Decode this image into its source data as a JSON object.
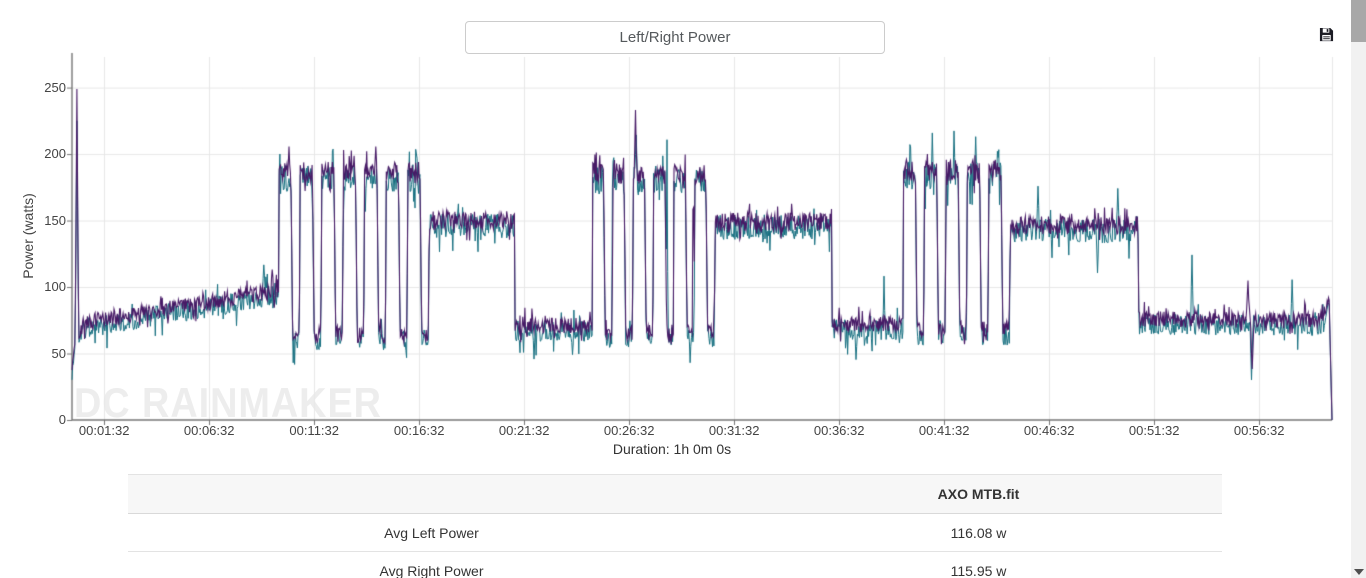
{
  "header": {
    "title": "Left/Right Power"
  },
  "watermark": "DC RAINMAKER",
  "chart_data": {
    "type": "line",
    "title": "Left/Right Power",
    "xlabel": "Duration: 1h 0m 0s",
    "ylabel": "Power (watts)",
    "xlim_seconds": [
      0,
      3600
    ],
    "ylim": [
      0,
      273
    ],
    "y_ticks": [
      0,
      50,
      100,
      150,
      200,
      250
    ],
    "x_ticks": [
      {
        "t": 92,
        "label": "00:01:32"
      },
      {
        "t": 392,
        "label": "00:06:32"
      },
      {
        "t": 692,
        "label": "00:11:32"
      },
      {
        "t": 992,
        "label": "00:16:32"
      },
      {
        "t": 1292,
        "label": "00:21:32"
      },
      {
        "t": 1592,
        "label": "00:26:32"
      },
      {
        "t": 1892,
        "label": "00:31:32"
      },
      {
        "t": 2192,
        "label": "00:36:32"
      },
      {
        "t": 2492,
        "label": "00:41:32"
      },
      {
        "t": 2792,
        "label": "00:46:32"
      },
      {
        "t": 3092,
        "label": "00:51:32"
      },
      {
        "t": 3392,
        "label": "00:56:32"
      }
    ],
    "grid": true,
    "legend_position": "none",
    "sample_step_seconds": 2,
    "right_offset": -3,
    "series": [
      {
        "name": "Left Power",
        "color": "#471a66",
        "avg_watts": 116.08
      },
      {
        "name": "Right Power",
        "color": "#156e7f",
        "avg_watts": 115.95
      }
    ],
    "segments": [
      {
        "t0": 0,
        "t1": 10,
        "v0": 38,
        "v1": 62,
        "noise": 5
      },
      {
        "t0": 10,
        "t1": 30,
        "v0": 62,
        "v1": 70,
        "noise": 5
      },
      {
        "t0": 30,
        "t1": 555,
        "v0": 73,
        "v1": 96,
        "noise": 6
      },
      {
        "t0": 555,
        "t1": 590,
        "v0": 96,
        "v1": 101,
        "noise": 8
      },
      {
        "type": "intervals",
        "t0": 590,
        "t1": 1020,
        "count": 7,
        "on": 186,
        "off": 64,
        "duty": 0.62,
        "noise_on": 8,
        "noise_off": 6
      },
      {
        "t0": 1020,
        "t1": 1265,
        "v0": 150,
        "v1": 150,
        "noise": 7
      },
      {
        "t0": 1265,
        "t1": 1486,
        "v0": 71,
        "v1": 71,
        "noise": 6
      },
      {
        "type": "intervals",
        "t0": 1486,
        "t1": 1837,
        "count": 6,
        "on": 185,
        "off": 66,
        "duty": 0.6,
        "noise_on": 8,
        "noise_off": 6
      },
      {
        "t0": 1837,
        "t1": 2170,
        "v0": 149,
        "v1": 149,
        "noise": 7
      },
      {
        "t0": 2170,
        "t1": 2374,
        "v0": 72,
        "v1": 72,
        "noise": 6
      },
      {
        "type": "intervals",
        "t0": 2374,
        "t1": 2680,
        "count": 5,
        "on": 188,
        "off": 68,
        "duty": 0.62,
        "noise_on": 8,
        "noise_off": 6
      },
      {
        "t0": 2680,
        "t1": 3046,
        "v0": 147,
        "v1": 146,
        "noise": 7
      },
      {
        "t0": 3046,
        "t1": 3576,
        "v0": 76,
        "v1": 75,
        "noise": 6
      },
      {
        "t0": 3576,
        "t1": 3592,
        "v0": 80,
        "v1": 90,
        "noise": 5
      },
      {
        "t0": 3592,
        "t1": 3600,
        "v0": 90,
        "v1": 0,
        "noise": 2
      }
    ],
    "events": [
      {
        "t": 14,
        "v": 249,
        "w": 10,
        "s": "both"
      },
      {
        "t": 548,
        "v": 118,
        "w": 8,
        "s": "right"
      },
      {
        "t": 572,
        "v": 113,
        "w": 8,
        "s": "left"
      },
      {
        "t": 620,
        "v": 207,
        "w": 6,
        "s": "left"
      },
      {
        "t": 745,
        "v": 210,
        "w": 6,
        "s": "right"
      },
      {
        "t": 868,
        "v": 206,
        "w": 6,
        "s": "left"
      },
      {
        "t": 985,
        "v": 208,
        "w": 6,
        "s": "right"
      },
      {
        "t": 1320,
        "v": 48,
        "w": 8,
        "s": "right"
      },
      {
        "t": 1430,
        "v": 50,
        "w": 8,
        "s": "right"
      },
      {
        "t": 1545,
        "v": 206,
        "w": 6,
        "s": "right"
      },
      {
        "t": 1610,
        "v": 233,
        "w": 8,
        "s": "left"
      },
      {
        "t": 1612,
        "v": 214,
        "w": 8,
        "s": "right"
      },
      {
        "t": 1700,
        "v": 209,
        "w": 6,
        "s": "right"
      },
      {
        "t": 1775,
        "v": 207,
        "w": 6,
        "s": "left"
      },
      {
        "t": 2240,
        "v": 45,
        "w": 8,
        "s": "right"
      },
      {
        "t": 2320,
        "v": 108,
        "w": 6,
        "s": "right"
      },
      {
        "t": 2395,
        "v": 216,
        "w": 6,
        "s": "right"
      },
      {
        "t": 2458,
        "v": 214,
        "w": 6,
        "s": "right"
      },
      {
        "t": 2520,
        "v": 219,
        "w": 6,
        "s": "right"
      },
      {
        "t": 2582,
        "v": 215,
        "w": 6,
        "s": "right"
      },
      {
        "t": 2645,
        "v": 211,
        "w": 6,
        "s": "right"
      },
      {
        "t": 2760,
        "v": 176,
        "w": 8,
        "s": "right"
      },
      {
        "t": 2930,
        "v": 113,
        "w": 8,
        "s": "right"
      },
      {
        "t": 2988,
        "v": 172,
        "w": 8,
        "s": "right"
      },
      {
        "t": 3200,
        "v": 126,
        "w": 8,
        "s": "right"
      },
      {
        "t": 3360,
        "v": 104,
        "w": 10,
        "s": "left"
      },
      {
        "t": 3372,
        "v": 38,
        "w": 10,
        "s": "left"
      },
      {
        "t": 3370,
        "v": 32,
        "w": 8,
        "s": "right"
      },
      {
        "t": 3486,
        "v": 108,
        "w": 8,
        "s": "right"
      }
    ]
  },
  "table": {
    "file_header": "AXO MTB.fit",
    "rows": [
      {
        "label": "Avg Left Power",
        "value": "116.08 w"
      },
      {
        "label": "Avg Right Power",
        "value": "115.95 w"
      }
    ]
  }
}
